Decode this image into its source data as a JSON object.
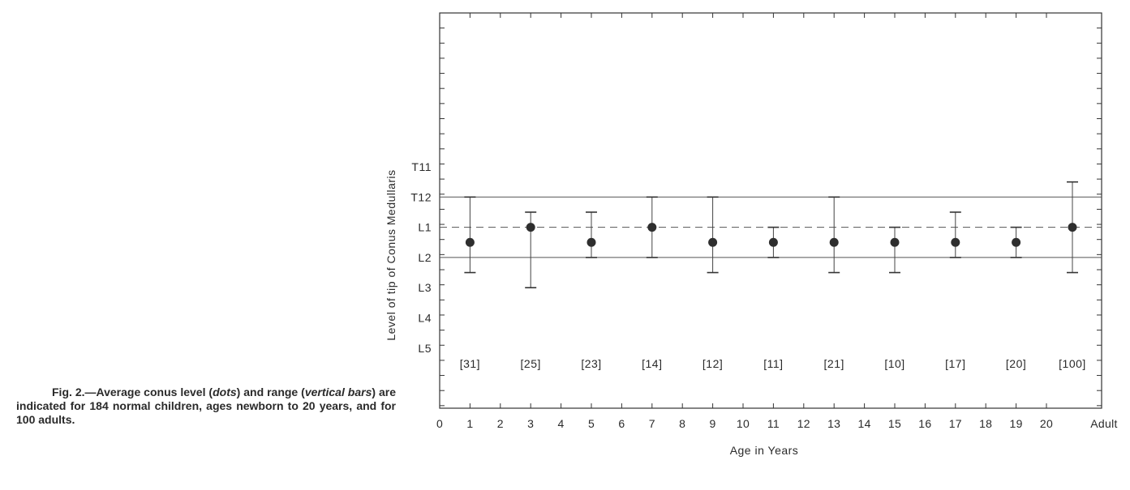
{
  "caption": {
    "label": "Fig. 2.",
    "dash": "—",
    "text_1": "Average conus level (",
    "em_1": "dots",
    "text_2": ") and range (",
    "em_2": "vertical bars",
    "text_3": ") are indicated for 184 normal children, ages newborn to 20 years, and for 100 adults."
  },
  "chart_data": {
    "type": "scatter",
    "xlabel": "Age in Years",
    "ylabel": "Level of tip of Conus Medullaris",
    "x_tick_labels": [
      "0",
      "1",
      "2",
      "3",
      "4",
      "5",
      "6",
      "7",
      "8",
      "9",
      "10",
      "11",
      "12",
      "13",
      "14",
      "15",
      "16",
      "17",
      "18",
      "19",
      "20",
      "Adult"
    ],
    "y_tick_labels": [
      "T11",
      "T12",
      "L1",
      "L2",
      "L3",
      "L4",
      "L5"
    ],
    "y_note": "level index: T11=1, T12=2, L1=3, L2=4, L3=5, L4=6, L5=7 (half values are intervertebral disc spaces)",
    "reference_lines": [
      {
        "level": "T12",
        "value": 2,
        "style": "solid"
      },
      {
        "level": "L1",
        "value": 3,
        "style": "dashed"
      },
      {
        "level": "L2",
        "value": 4,
        "style": "solid"
      }
    ],
    "points": [
      {
        "x": "1",
        "mean": 3.5,
        "min": 2,
        "max": 4.5,
        "n": "[31]"
      },
      {
        "x": "3",
        "mean": 3,
        "min": 2.5,
        "max": 5,
        "n": "[25]"
      },
      {
        "x": "5",
        "mean": 3.5,
        "min": 2.5,
        "max": 4,
        "n": "[23]"
      },
      {
        "x": "7",
        "mean": 3,
        "min": 2,
        "max": 4,
        "n": "[14]"
      },
      {
        "x": "9",
        "mean": 3.5,
        "min": 2,
        "max": 4.5,
        "n": "[12]"
      },
      {
        "x": "11",
        "mean": 3.5,
        "min": 3,
        "max": 4,
        "n": "[11]"
      },
      {
        "x": "13",
        "mean": 3.5,
        "min": 2,
        "max": 4.5,
        "n": "[21]"
      },
      {
        "x": "15",
        "mean": 3.5,
        "min": 3,
        "max": 4.5,
        "n": "[10]"
      },
      {
        "x": "17",
        "mean": 3.5,
        "min": 2.5,
        "max": 4,
        "n": "[17]"
      },
      {
        "x": "19",
        "mean": 3.5,
        "min": 3,
        "max": 4,
        "n": "[20]"
      },
      {
        "x": "Adult",
        "mean": 3,
        "min": 1.5,
        "max": 4.5,
        "n": "[100]"
      }
    ],
    "grid": false
  }
}
